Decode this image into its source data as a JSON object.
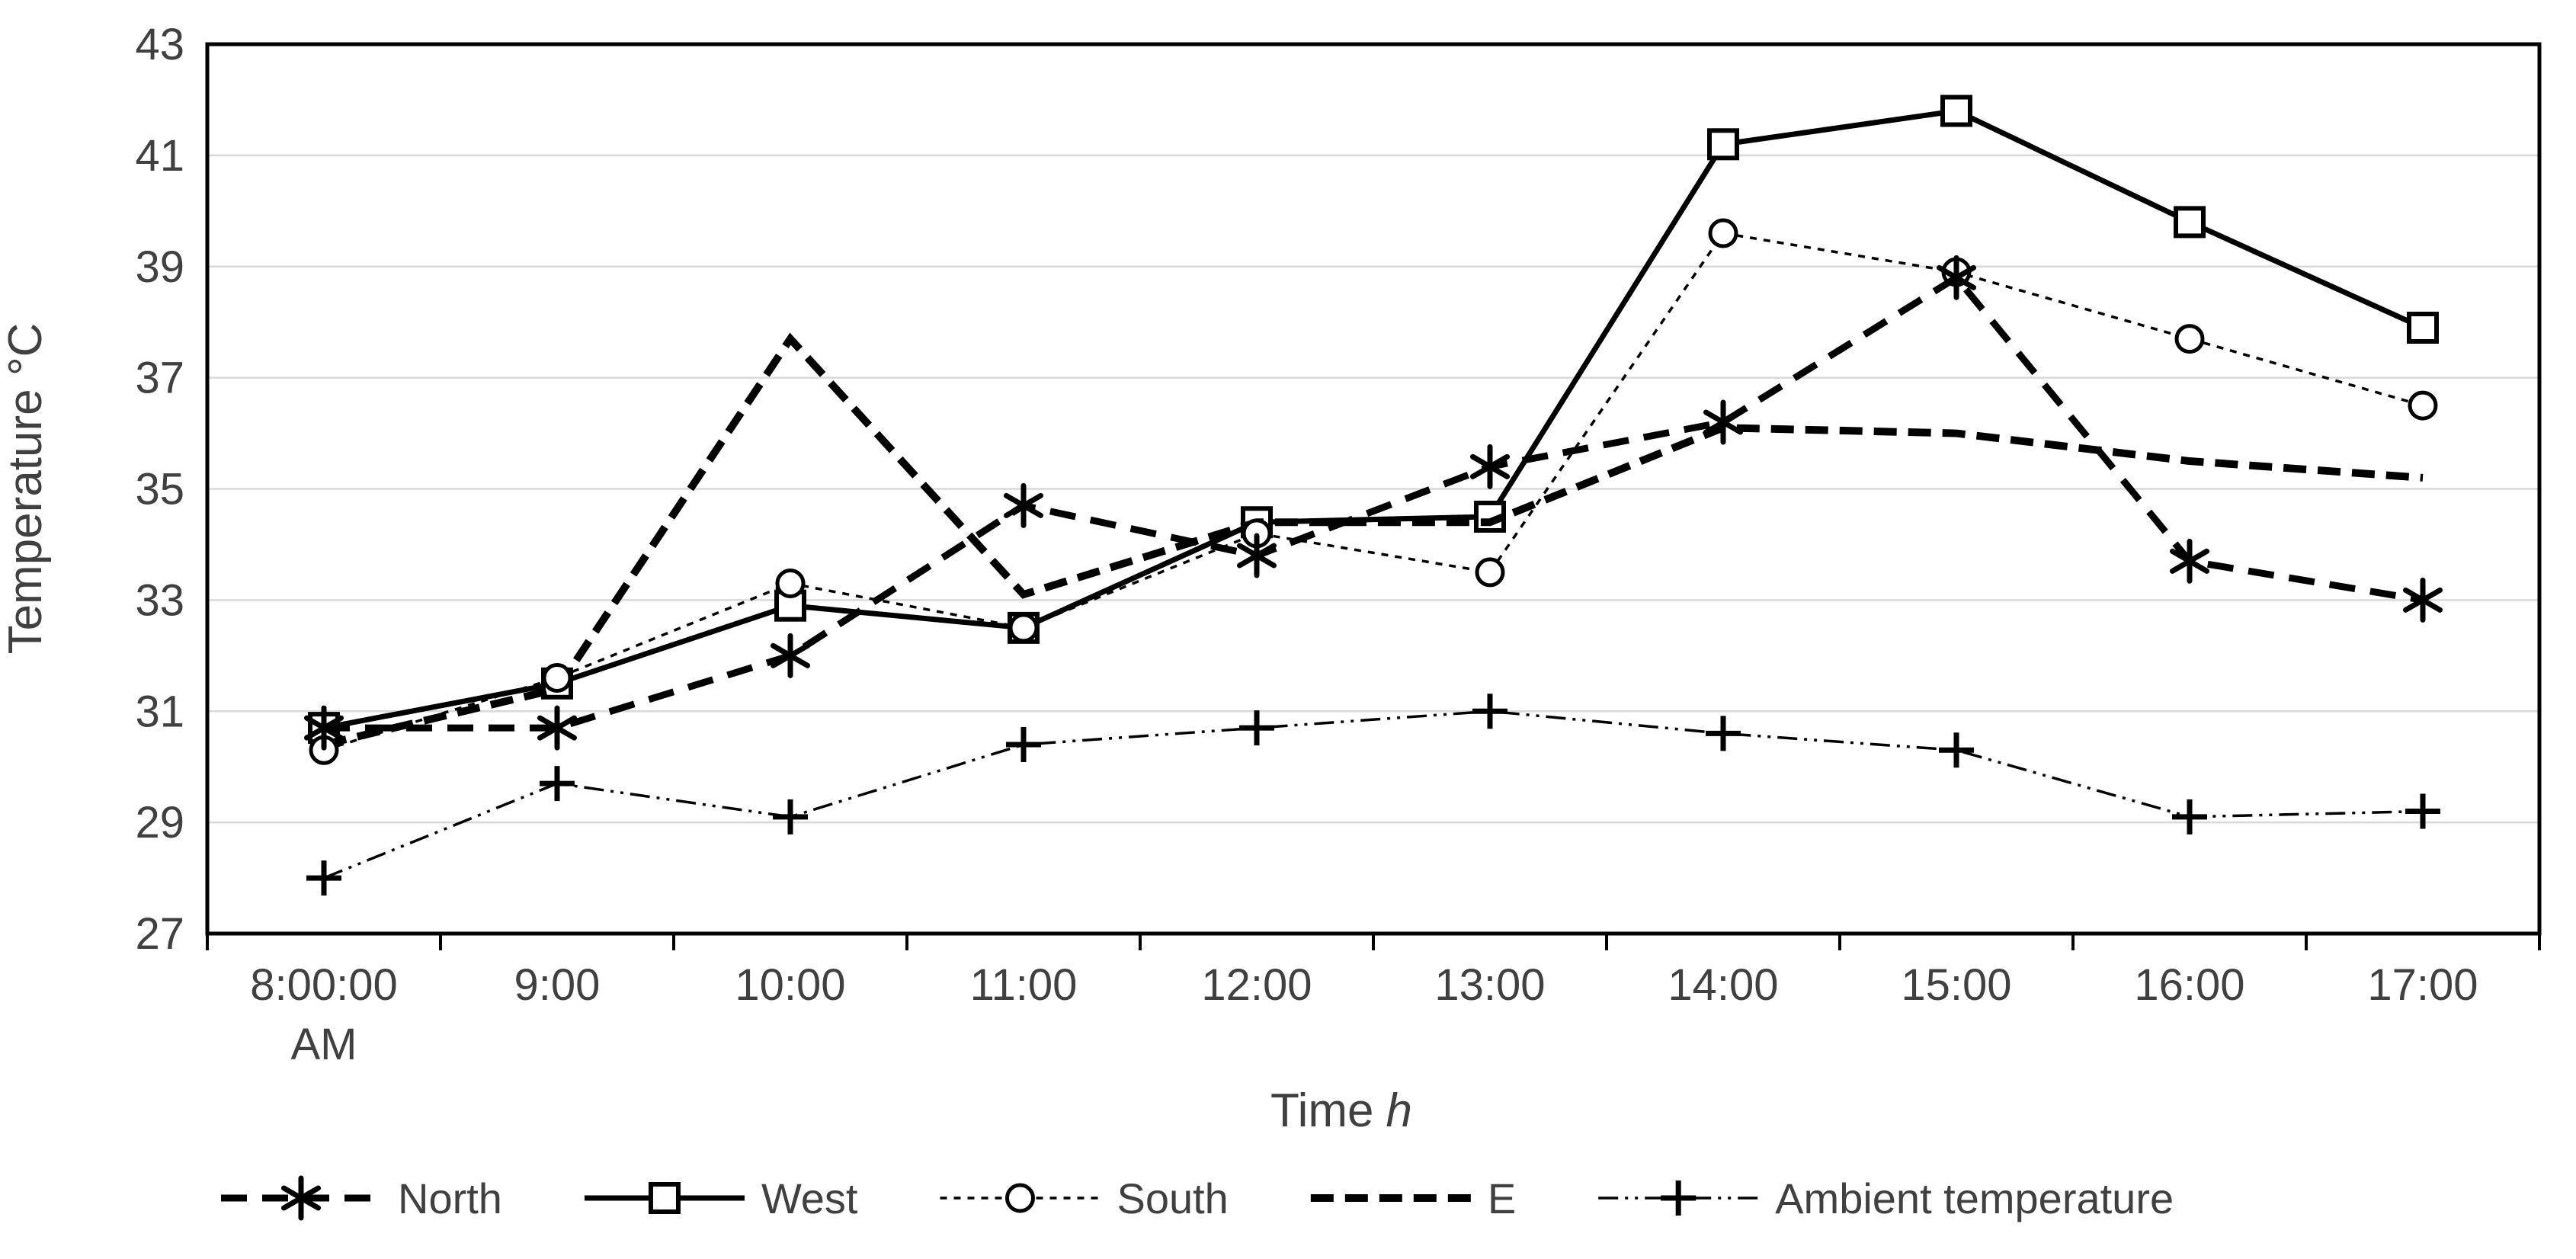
{
  "chart_data": {
    "type": "line",
    "xlabel": "Time",
    "xlabel_unit": "h",
    "ylabel": "Temperature °C",
    "ylim": [
      27,
      43
    ],
    "y_ticks": [
      27,
      29,
      31,
      33,
      35,
      37,
      39,
      41,
      43
    ],
    "grid": "horizontal",
    "legend_position": "bottom",
    "categories": [
      {
        "line1": "8:00:00",
        "line2": "AM"
      },
      {
        "line1": "9:00"
      },
      {
        "line1": "10:00"
      },
      {
        "line1": "11:00"
      },
      {
        "line1": "12:00"
      },
      {
        "line1": "13:00"
      },
      {
        "line1": "14:00"
      },
      {
        "line1": "15:00"
      },
      {
        "line1": "16:00"
      },
      {
        "line1": "17:00"
      }
    ],
    "series": [
      {
        "name": "North",
        "marker": "asterisk",
        "line_style": "long-dash",
        "color": "#000000",
        "values": [
          30.7,
          30.7,
          32.0,
          34.7,
          33.8,
          35.4,
          36.2,
          38.8,
          33.7,
          33.0
        ]
      },
      {
        "name": "West",
        "marker": "square",
        "line_style": "solid",
        "color": "#000000",
        "values": [
          30.7,
          31.5,
          32.9,
          32.5,
          34.4,
          34.5,
          41.2,
          41.8,
          39.8,
          37.9
        ]
      },
      {
        "name": "South",
        "marker": "circle",
        "line_style": "dotted",
        "color": "#000000",
        "values": [
          30.3,
          31.6,
          33.3,
          32.5,
          34.2,
          33.5,
          39.6,
          38.9,
          37.7,
          36.5
        ]
      },
      {
        "name": "E",
        "marker": "none",
        "line_style": "heavy-dash",
        "color": "#000000",
        "values": [
          30.4,
          31.4,
          37.7,
          33.1,
          34.4,
          34.4,
          36.1,
          36.0,
          35.5,
          35.2
        ]
      },
      {
        "name": "Ambient temperature",
        "marker": "plus",
        "line_style": "dash-dot-dot",
        "color": "#000000",
        "values": [
          28.0,
          29.7,
          29.1,
          30.4,
          30.7,
          31.0,
          30.6,
          30.3,
          29.1,
          29.2
        ]
      }
    ],
    "colors": {
      "gridline": "#d9d9d9",
      "axis": "#000000",
      "text": "#404040",
      "plot_background": "#ffffff"
    }
  }
}
